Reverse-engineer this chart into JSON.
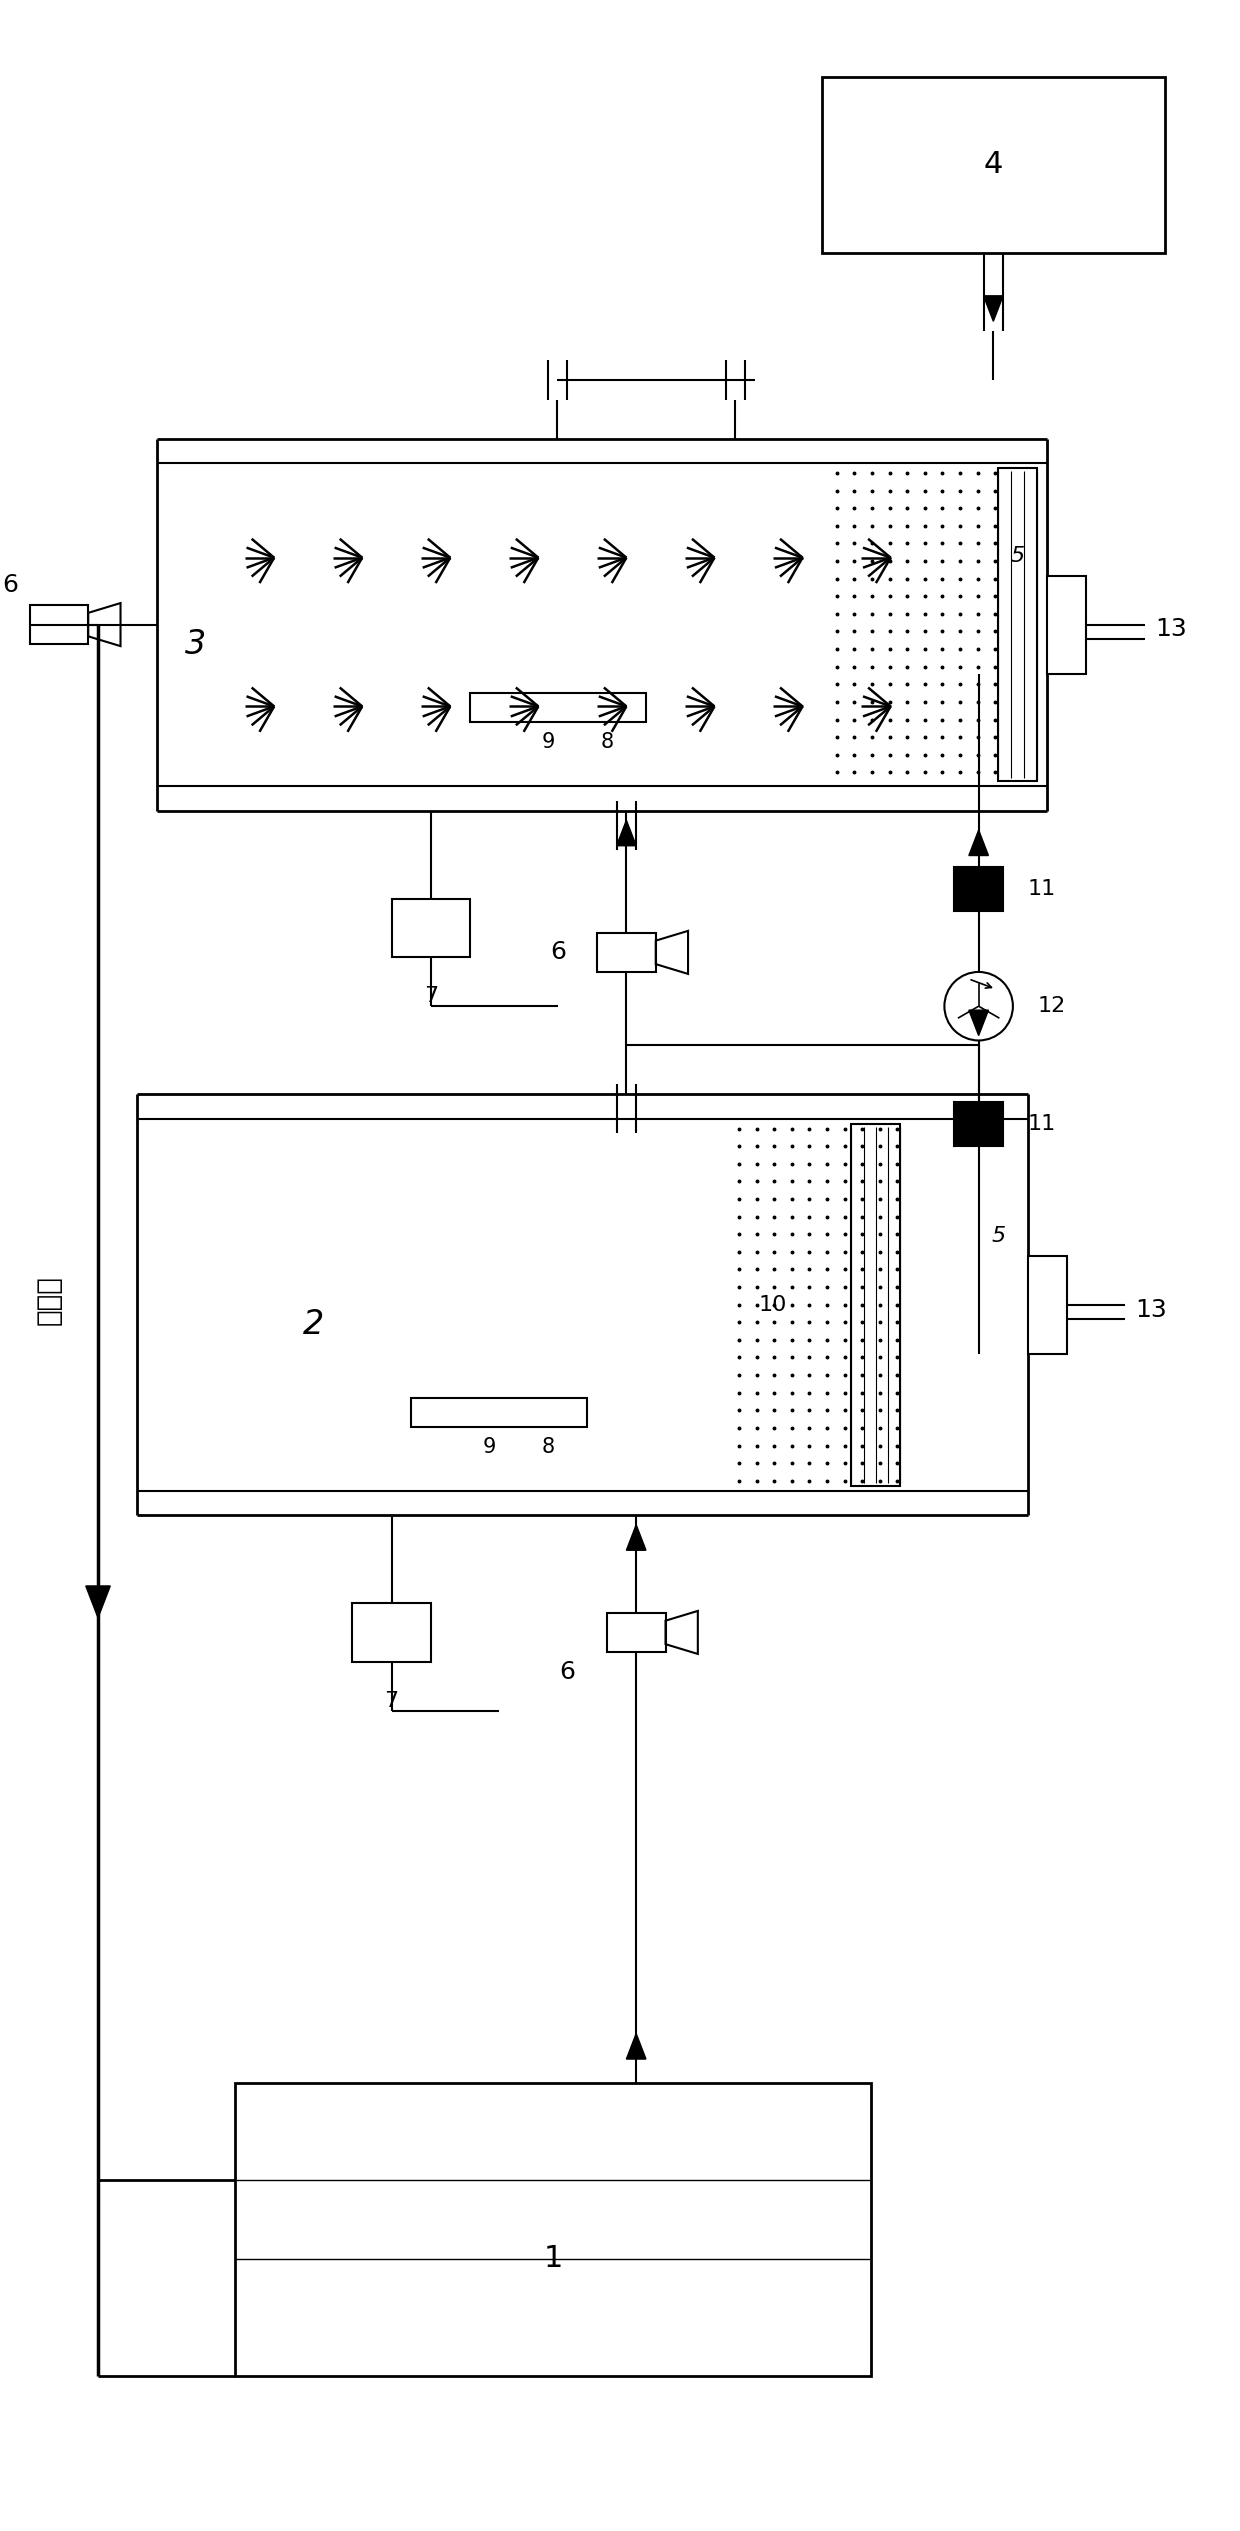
{
  "bg_color": "#ffffff",
  "line_color": "#000000",
  "fig_width": 12.4,
  "fig_height": 25.31
}
